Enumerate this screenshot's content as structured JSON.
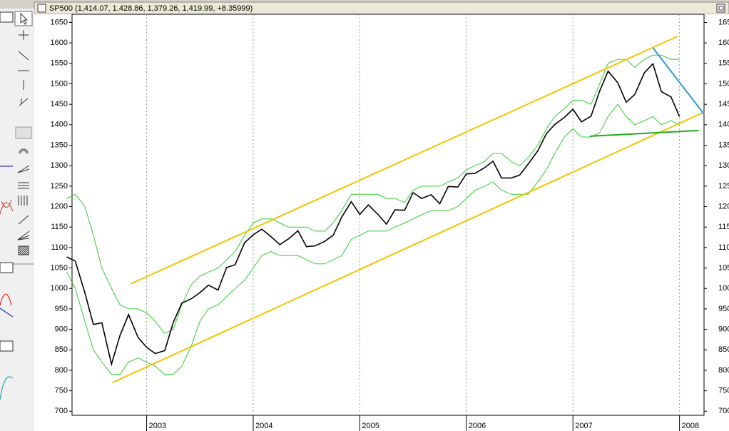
{
  "header": {
    "title": "SP500 (1,414.07, 1,428.86, 1,379.26, 1,419.99, +8.35999)"
  },
  "chart_data": {
    "type": "line",
    "x": [
      2002.25,
      2002.33,
      2002.42,
      2002.5,
      2002.58,
      2002.67,
      2002.75,
      2002.83,
      2002.92,
      2003,
      2003.08,
      2003.17,
      2003.25,
      2003.33,
      2003.42,
      2003.5,
      2003.58,
      2003.67,
      2003.75,
      2003.83,
      2003.92,
      2004,
      2004.08,
      2004.17,
      2004.25,
      2004.33,
      2004.42,
      2004.5,
      2004.58,
      2004.67,
      2004.75,
      2004.83,
      2004.92,
      2005,
      2005.08,
      2005.17,
      2005.25,
      2005.33,
      2005.42,
      2005.5,
      2005.58,
      2005.67,
      2005.75,
      2005.83,
      2005.92,
      2006,
      2006.08,
      2006.17,
      2006.25,
      2006.33,
      2006.42,
      2006.5,
      2006.58,
      2006.67,
      2006.75,
      2006.83,
      2006.92,
      2007,
      2007.08,
      2007.17,
      2007.25,
      2007.33,
      2007.42,
      2007.5,
      2007.58,
      2007.67,
      2007.75,
      2007.83,
      2007.92,
      2008
    ],
    "series": [
      {
        "color": "#000000",
        "values": [
          1077,
          1067,
          990,
          912,
          916,
          815,
          885,
          936,
          880,
          856,
          841,
          848,
          917,
          964,
          975,
          990,
          1008,
          996,
          1051,
          1058,
          1112,
          1131,
          1145,
          1126,
          1107,
          1121,
          1141,
          1102,
          1104,
          1115,
          1130,
          1174,
          1212,
          1181,
          1204,
          1181,
          1157,
          1192,
          1191,
          1234,
          1220,
          1229,
          1207,
          1249,
          1248,
          1280,
          1281,
          1295,
          1311,
          1270,
          1270,
          1277,
          1304,
          1336,
          1378,
          1401,
          1418,
          1438,
          1407,
          1421,
          1482,
          1531,
          1503,
          1455,
          1474,
          1527,
          1549,
          1481,
          1468,
          1420
        ]
      },
      {
        "color": "#33cc33",
        "values": [
          1220,
          1230,
          1200,
          1130,
          1050,
          1000,
          960,
          950,
          950,
          940,
          920,
          890,
          900,
          960,
          1010,
          1030,
          1040,
          1050,
          1070,
          1090,
          1130,
          1160,
          1170,
          1170,
          1160,
          1150,
          1150,
          1150,
          1140,
          1140,
          1160,
          1190,
          1230,
          1230,
          1230,
          1230,
          1220,
          1220,
          1210,
          1240,
          1250,
          1250,
          1250,
          1260,
          1270,
          1290,
          1300,
          1310,
          1330,
          1330,
          1310,
          1300,
          1320,
          1350,
          1390,
          1420,
          1440,
          1460,
          1460,
          1450,
          1500,
          1550,
          1560,
          1560,
          1540,
          1560,
          1570,
          1570,
          1560,
          1560
        ]
      },
      {
        "color": "#33cc33",
        "values": [
          1040,
          1000,
          920,
          850,
          820,
          790,
          790,
          820,
          830,
          820,
          810,
          790,
          790,
          810,
          860,
          920,
          950,
          960,
          980,
          1000,
          1020,
          1050,
          1080,
          1090,
          1080,
          1080,
          1080,
          1070,
          1060,
          1060,
          1070,
          1080,
          1120,
          1130,
          1140,
          1140,
          1140,
          1150,
          1160,
          1170,
          1180,
          1190,
          1190,
          1190,
          1200,
          1220,
          1240,
          1250,
          1260,
          1240,
          1230,
          1230,
          1230,
          1260,
          1290,
          1330,
          1370,
          1390,
          1370,
          1370,
          1380,
          1420,
          1450,
          1420,
          1400,
          1410,
          1420,
          1400,
          1410,
          1400
        ]
      }
    ],
    "trendlines": [
      {
        "color": "#f2c500",
        "x": [
          2002.85,
          2007.98
        ],
        "values": [
          1011,
          1616
        ]
      },
      {
        "color": "#f2c500",
        "x": [
          2002.68,
          2008.23
        ],
        "values": [
          770,
          1431
        ]
      },
      {
        "color": "#22aa22",
        "x": [
          2007.16,
          2008.18
        ],
        "values": [
          1372,
          1386
        ]
      },
      {
        "color": "#3399cc",
        "x": [
          2007.75,
          2008.23
        ],
        "values": [
          1588,
          1426
        ]
      }
    ],
    "xlim": [
      2002.3,
      2008.23
    ],
    "xticks": [
      2003,
      2004,
      2005,
      2006,
      2007,
      2008
    ],
    "ylim": [
      690,
      1670
    ],
    "yticks": [
      700,
      750,
      800,
      850,
      900,
      950,
      1000,
      1050,
      1100,
      1150,
      1200,
      1250,
      1300,
      1350,
      1400,
      1450,
      1500,
      1550,
      1600,
      1650
    ],
    "grid": true
  }
}
